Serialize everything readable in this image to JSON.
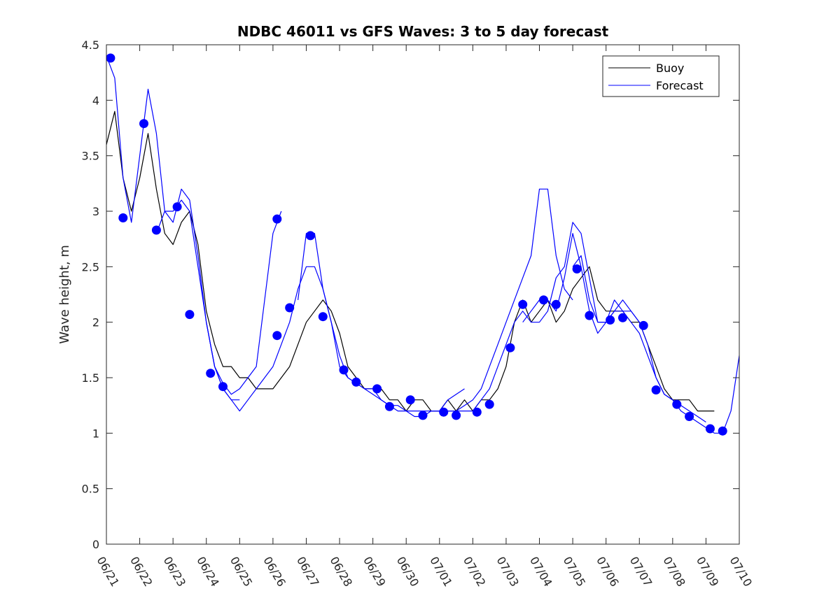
{
  "chart_data": {
    "type": "line",
    "title": "NDBC 46011 vs GFS Waves: 3 to 5 day forecast",
    "xlabel": "",
    "ylabel": "Wave height, m",
    "xlim": [
      "06/21",
      "07/10"
    ],
    "ylim": [
      0,
      4.5
    ],
    "x_ticks": [
      "06/21",
      "06/22",
      "06/23",
      "06/24",
      "06/25",
      "06/26",
      "06/27",
      "06/28",
      "06/29",
      "06/30",
      "07/01",
      "07/02",
      "07/03",
      "07/04",
      "07/05",
      "07/06",
      "07/07",
      "07/08",
      "07/09",
      "07/10"
    ],
    "y_ticks": [
      "0",
      "0.5",
      "1",
      "1.5",
      "2",
      "2.5",
      "3",
      "3.5",
      "4",
      "4.5"
    ],
    "grid": false,
    "legend": {
      "placement": "top-right",
      "entries": [
        "Buoy",
        "Forecast"
      ]
    },
    "colors": {
      "buoy": "#000000",
      "forecast": "#0000ff",
      "markers": "#0000ff"
    },
    "series": [
      {
        "name": "Buoy",
        "x": [
          "06/21",
          "06/21 06h",
          "06/21 12h",
          "06/21 18h",
          "06/22",
          "06/22 06h",
          "06/22 12h",
          "06/22 18h",
          "06/23",
          "06/23 06h",
          "06/23 12h",
          "06/23 18h",
          "06/24",
          "06/24 06h",
          "06/24 12h",
          "06/24 18h",
          "06/25",
          "06/25 06h",
          "06/25 12h",
          "06/25 18h",
          "06/26",
          "06/26 06h",
          "06/26 12h",
          "06/26 18h",
          "06/27",
          "06/27 06h",
          "06/27 12h",
          "06/27 18h",
          "06/28",
          "06/28 06h",
          "06/28 12h",
          "06/28 18h",
          "06/29",
          "06/29 06h",
          "06/29 12h",
          "06/29 18h",
          "06/30",
          "06/30 06h",
          "06/30 12h",
          "06/30 18h",
          "07/01",
          "07/01 06h",
          "07/01 12h",
          "07/01 18h",
          "07/02",
          "07/02 06h",
          "07/02 12h",
          "07/02 18h",
          "07/03",
          "07/03 06h",
          "07/03 12h",
          "07/03 18h",
          "07/04",
          "07/04 06h",
          "07/04 12h",
          "07/04 18h",
          "07/05",
          "07/05 06h",
          "07/05 12h",
          "07/05 18h",
          "07/06",
          "07/06 06h",
          "07/06 12h",
          "07/06 18h",
          "07/07",
          "07/07 06h",
          "07/07 12h",
          "07/07 18h",
          "07/08",
          "07/08 06h",
          "07/08 12h",
          "07/08 18h",
          "07/09",
          "07/09 06h"
        ],
        "values": [
          3.6,
          3.9,
          3.3,
          3.0,
          3.3,
          3.7,
          3.2,
          2.8,
          2.7,
          2.9,
          3.0,
          2.7,
          2.1,
          1.8,
          1.6,
          1.6,
          1.5,
          1.5,
          1.4,
          1.4,
          1.4,
          1.5,
          1.6,
          1.8,
          2.0,
          2.1,
          2.2,
          2.1,
          1.9,
          1.6,
          1.5,
          1.4,
          1.4,
          1.4,
          1.3,
          1.3,
          1.2,
          1.3,
          1.3,
          1.2,
          1.2,
          1.3,
          1.2,
          1.3,
          1.2,
          1.3,
          1.3,
          1.4,
          1.6,
          2.0,
          2.2,
          2.0,
          2.1,
          2.2,
          2.0,
          2.1,
          2.3,
          2.4,
          2.5,
          2.2,
          2.1,
          2.1,
          2.1,
          2.0,
          2.0,
          1.8,
          1.6,
          1.4,
          1.3,
          1.3,
          1.3,
          1.2,
          1.2,
          1.2
        ]
      },
      {
        "name": "Forecast",
        "runs": [
          {
            "x": [
              "06/21",
              "06/21 06h",
              "06/21 12h",
              "06/21 18h",
              "06/22",
              "06/22 06h",
              "06/22 12h",
              "06/22 18h",
              "06/23",
              "06/23 06h",
              "06/23 12h",
              "06/23 18h",
              "06/24",
              "06/24 06h",
              "06/24 12h",
              "06/24 18h",
              "06/25"
            ],
            "values": [
              4.4,
              4.2,
              3.3,
              2.9,
              3.5,
              4.1,
              3.7,
              3.0,
              2.9,
              3.2,
              3.1,
              2.6,
              2.0,
              1.6,
              1.4,
              1.3,
              1.3
            ]
          },
          {
            "x": [
              "06/22 12h",
              "06/22 18h",
              "06/23",
              "06/23 06h",
              "06/23 12h",
              "06/23 18h",
              "06/24",
              "06/24 06h",
              "06/24 12h",
              "06/24 18h",
              "06/25",
              "06/25 06h",
              "06/25 12h",
              "06/25 18h",
              "06/26",
              "06/26 06h"
            ],
            "values": [
              2.8,
              3.0,
              3.0,
              3.1,
              3.0,
              2.5,
              2.0,
              1.6,
              1.45,
              1.35,
              1.4,
              1.5,
              1.6,
              2.2,
              2.8,
              3.0
            ]
          },
          {
            "x": [
              "06/24",
              "06/24 06h",
              "06/24 12h",
              "06/24 18h",
              "06/25",
              "06/25 06h",
              "06/25 12h",
              "06/25 18h",
              "06/26",
              "06/26 06h",
              "06/26 12h",
              "06/26 18h",
              "06/27",
              "06/27 06h",
              "06/27 12h",
              "06/27 18h",
              "06/28",
              "06/28 06h",
              "06/28 12h",
              "06/28 18h",
              "06/29"
            ],
            "values": [
              2.0,
              1.6,
              1.4,
              1.3,
              1.2,
              1.3,
              1.4,
              1.5,
              1.6,
              1.8,
              2.0,
              2.3,
              2.5,
              2.5,
              2.3,
              2.0,
              1.7,
              1.5,
              1.45,
              1.4,
              1.4
            ]
          },
          {
            "x": [
              "06/26 18h",
              "06/27",
              "06/27 06h",
              "06/27 12h",
              "06/27 18h",
              "06/28",
              "06/28 06h",
              "06/28 12h",
              "06/28 18h",
              "06/29",
              "06/29 06h",
              "06/29 12h",
              "06/29 18h",
              "06/30",
              "06/30 06h",
              "06/30 12h",
              "06/30 18h",
              "07/01",
              "07/01 06h",
              "07/01 12h",
              "07/01 18h"
            ],
            "values": [
              2.2,
              2.8,
              2.8,
              2.3,
              2.0,
              1.6,
              1.5,
              1.45,
              1.4,
              1.35,
              1.3,
              1.25,
              1.25,
              1.2,
              1.2,
              1.2,
              1.2,
              1.2,
              1.3,
              1.35,
              1.4
            ]
          },
          {
            "x": [
              "06/29",
              "06/29 06h",
              "06/29 12h",
              "06/29 18h",
              "06/30",
              "06/30 06h",
              "06/30 12h",
              "06/30 18h",
              "07/01",
              "07/01 06h",
              "07/01 12h",
              "07/01 18h",
              "07/02",
              "07/02 06h",
              "07/02 12h",
              "07/02 18h",
              "07/03",
              "07/03 06h",
              "07/03 12h",
              "07/03 18h",
              "07/04",
              "07/04 06h",
              "07/04 12h",
              "07/04 18h",
              "07/05"
            ],
            "values": [
              1.4,
              1.3,
              1.25,
              1.2,
              1.2,
              1.15,
              1.15,
              1.2,
              1.2,
              1.2,
              1.2,
              1.25,
              1.3,
              1.4,
              1.6,
              1.8,
              2.0,
              2.2,
              2.4,
              2.6,
              3.2,
              3.2,
              2.6,
              2.3,
              2.2
            ]
          },
          {
            "x": [
              "07/01 06h",
              "07/01 12h",
              "07/01 18h",
              "07/02",
              "07/02 06h",
              "07/02 12h",
              "07/02 18h",
              "07/03",
              "07/03 06h",
              "07/03 12h",
              "07/03 18h",
              "07/04",
              "07/04 06h",
              "07/04 12h",
              "07/04 18h",
              "07/05",
              "07/05 06h",
              "07/05 12h",
              "07/05 18h",
              "07/06",
              "07/06 06h",
              "07/06 12h",
              "07/06 18h",
              "07/07"
            ],
            "values": [
              1.2,
              1.2,
              1.2,
              1.2,
              1.3,
              1.4,
              1.6,
              1.8,
              2.0,
              2.1,
              2.0,
              2.0,
              2.1,
              2.4,
              2.5,
              2.9,
              2.8,
              2.4,
              2.0,
              2.0,
              2.1,
              2.2,
              2.1,
              2.0
            ]
          },
          {
            "x": [
              "07/03 12h",
              "07/03 18h",
              "07/04",
              "07/04 06h",
              "07/04 12h",
              "07/04 18h",
              "07/05",
              "07/05 06h",
              "07/05 12h",
              "07/05 18h",
              "07/06",
              "07/06 06h",
              "07/06 12h",
              "07/06 18h",
              "07/07",
              "07/07 06h",
              "07/07 12h",
              "07/07 18h",
              "07/08",
              "07/08 06h",
              "07/08 12h",
              "07/08 18h",
              "07/09"
            ],
            "values": [
              2.0,
              2.1,
              2.2,
              2.2,
              2.1,
              2.4,
              2.8,
              2.5,
              2.1,
              1.9,
              2.0,
              2.2,
              2.1,
              2.1,
              2.0,
              1.8,
              1.5,
              1.35,
              1.3,
              1.25,
              1.2,
              1.15,
              1.1
            ]
          },
          {
            "x": [
              "07/05",
              "07/05 06h",
              "07/05 12h",
              "07/05 18h",
              "07/06",
              "07/06 06h",
              "07/06 12h",
              "07/06 18h",
              "07/07",
              "07/07 06h",
              "07/07 12h",
              "07/07 18h",
              "07/08",
              "07/08 06h",
              "07/08 12h",
              "07/08 18h",
              "07/09",
              "07/09 06h",
              "07/09 12h",
              "07/09 18h",
              "07/10"
            ],
            "values": [
              2.5,
              2.6,
              2.2,
              2.0,
              2.0,
              2.1,
              2.1,
              2.0,
              1.9,
              1.7,
              1.5,
              1.35,
              1.3,
              1.2,
              1.15,
              1.1,
              1.05,
              1.0,
              1.0,
              1.2,
              1.7
            ]
          }
        ]
      }
    ],
    "markers": {
      "x": [
        "06/21 03h",
        "06/21 12h",
        "06/22 03h",
        "06/22 12h",
        "06/23 03h",
        "06/23 12h",
        "06/24 03h",
        "06/24 12h",
        "06/26 03h",
        "06/26 03h ",
        "06/26 12h",
        "06/27 03h",
        "06/27 12h",
        "06/28 03h",
        "06/28 12h",
        "06/29 03h",
        "06/29 12h",
        "06/30 03h",
        "06/30 12h",
        "07/01 03h",
        "07/01 12h",
        "07/02 03h",
        "07/02 12h",
        "07/03 03h",
        "07/03 12h",
        "07/04 03h",
        "07/04 12h",
        "07/05 03h",
        "07/05 12h",
        "07/06 03h",
        "07/06 12h",
        "07/07 03h",
        "07/07 12h",
        "07/08 03h",
        "07/08 12h",
        "07/09 03h",
        "07/09 12h"
      ],
      "values": [
        4.38,
        2.94,
        3.79,
        2.83,
        3.04,
        2.07,
        1.54,
        1.42,
        2.93,
        1.88,
        2.13,
        2.78,
        2.05,
        1.57,
        1.46,
        1.4,
        1.24,
        1.3,
        1.16,
        1.19,
        1.16,
        1.19,
        1.26,
        1.77,
        2.16,
        2.2,
        2.16,
        2.48,
        2.06,
        2.02,
        2.04,
        1.97,
        1.39,
        1.26,
        1.15,
        1.04,
        1.02
      ]
    }
  }
}
